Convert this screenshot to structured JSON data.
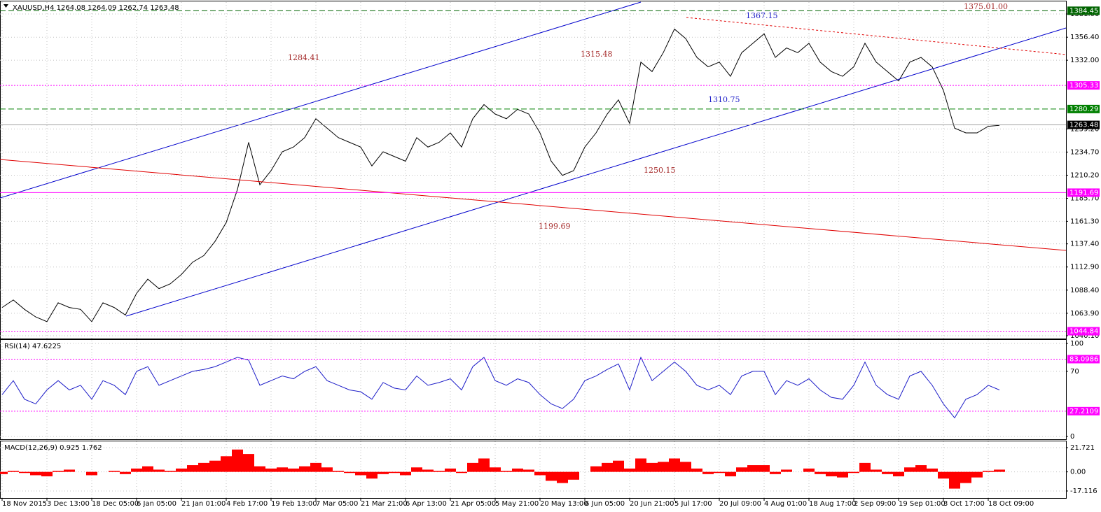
{
  "chart_data": [
    {
      "type": "line",
      "title": "XAUUSD,H4  1264.08 1264.09 1262.74 1263.48",
      "color": "#000000",
      "grid": true,
      "categories": [
        "18 Nov 2015",
        null,
        null,
        null,
        "3 Dec 13:00",
        null,
        null,
        null,
        "18 Dec 05:00",
        null,
        null,
        null,
        "6 Jan 05:00",
        null,
        null,
        null,
        "21 Jan 01:00",
        null,
        null,
        null,
        "4 Feb 17:00",
        null,
        null,
        null,
        "19 Feb 13:00",
        null,
        null,
        null,
        "7 Mar 05:00",
        null,
        null,
        null,
        "21 Mar 21:00",
        null,
        null,
        null,
        "6 Apr 13:00",
        null,
        null,
        null,
        "21 Apr 05:00",
        null,
        null,
        null,
        "5 May 21:00",
        null,
        null,
        null,
        "20 May 13:00",
        null,
        null,
        null,
        "6 Jun 05:00",
        null,
        null,
        null,
        "20 Jun 21:00",
        null,
        null,
        null,
        "5 Jul 17:00",
        null,
        null,
        null,
        "20 Jul 09:00",
        null,
        null,
        null,
        "4 Aug 01:00",
        null,
        null,
        null,
        "18 Aug 17:00",
        null,
        null,
        null,
        "2 Sep 09:00",
        null,
        null,
        null,
        "19 Sep 01:00",
        null,
        null,
        null,
        "3 Oct 17:00",
        null,
        null,
        null,
        "18 Oct 09:00",
        null
      ],
      "values": [
        1070,
        1078,
        1068,
        1060,
        1055,
        1075,
        1070,
        1068,
        1055,
        1075,
        1070,
        1062,
        1085,
        1100,
        1090,
        1095,
        1105,
        1118,
        1125,
        1140,
        1160,
        1195,
        1245,
        1200,
        1215,
        1235,
        1240,
        1250,
        1270,
        1260,
        1250,
        1245,
        1240,
        1220,
        1235,
        1230,
        1225,
        1250,
        1240,
        1245,
        1255,
        1240,
        1270,
        1285,
        1275,
        1270,
        1280,
        1275,
        1255,
        1225,
        1210,
        1215,
        1240,
        1255,
        1275,
        1290,
        1265,
        1330,
        1320,
        1340,
        1365,
        1355,
        1335,
        1325,
        1330,
        1315,
        1340,
        1350,
        1360,
        1335,
        1345,
        1340,
        1350,
        1330,
        1320,
        1315,
        1325,
        1350,
        1330,
        1320,
        1310,
        1330,
        1335,
        1325,
        1300,
        1260,
        1255,
        1255,
        1262,
        1263
      ],
      "ylim": [
        1037.1,
        1393.6
      ],
      "yticks": [
        {
          "value": 1381,
          "label": "1381.00"
        },
        {
          "value": 1356.4,
          "label": "1356.40"
        },
        {
          "value": 1332,
          "label": "1332.00"
        },
        {
          "value": 1259.2,
          "label": "1259.20"
        },
        {
          "value": 1234.7,
          "label": "1234.70"
        },
        {
          "value": 1210.2,
          "label": "1210.20"
        },
        {
          "value": 1185.7,
          "label": "1185.70"
        },
        {
          "value": 1161.3,
          "label": "1161.30"
        },
        {
          "value": 1137.4,
          "label": "1137.40"
        },
        {
          "value": 1112.9,
          "label": "1112.90"
        },
        {
          "value": 1088.4,
          "label": "1088.40"
        },
        {
          "value": 1063.9,
          "label": "1063.90"
        },
        {
          "value": 1040.1,
          "label": "1040.10"
        }
      ],
      "levels": [
        {
          "value": 1384.45,
          "color": "#006400",
          "style": "dashed"
        },
        {
          "value": 1305.33,
          "color": "#ff00ff",
          "style": "dotted"
        },
        {
          "value": 1280.29,
          "color": "#008000",
          "style": "dashed"
        },
        {
          "value": 1263.48,
          "color": "#000000",
          "style": "current"
        },
        {
          "value": 1191.69,
          "color": "#ff00ff",
          "style": "solid"
        },
        {
          "value": 1044.84,
          "color": "#ff00ff",
          "style": "dotted"
        }
      ],
      "annotations": [
        "1375.01.00",
        "1367.15",
        "1284.41",
        "1315.48",
        "1310.75",
        "1250.15",
        "1199.69"
      ]
    },
    {
      "type": "line",
      "title": "RSI(14) 47.6225",
      "color": "#1c1cc8",
      "grid": true,
      "values": [
        45,
        60,
        40,
        35,
        50,
        60,
        50,
        55,
        40,
        60,
        55,
        45,
        70,
        75,
        55,
        60,
        65,
        70,
        72,
        75,
        80,
        85,
        82,
        55,
        60,
        65,
        62,
        70,
        75,
        60,
        55,
        50,
        48,
        40,
        58,
        52,
        50,
        65,
        55,
        58,
        62,
        50,
        75,
        85,
        60,
        55,
        62,
        58,
        45,
        35,
        30,
        40,
        60,
        65,
        72,
        78,
        50,
        85,
        60,
        70,
        80,
        70,
        55,
        50,
        55,
        45,
        65,
        70,
        70,
        45,
        60,
        55,
        62,
        50,
        42,
        40,
        55,
        80,
        55,
        45,
        40,
        65,
        70,
        55,
        35,
        20,
        40,
        45,
        55,
        50
      ],
      "ylim": [
        -3,
        103
      ],
      "yticks": [
        100,
        70,
        0
      ],
      "levels": [
        {
          "value": 83.0986,
          "color": "#ff00ff",
          "style": "dotted"
        },
        {
          "value": 27.2109,
          "color": "#ff00ff",
          "style": "dotted"
        }
      ]
    },
    {
      "type": "bar",
      "title": "MACD(12,26,9) 0.925 1.762",
      "color": "#ff0000",
      "grid": true,
      "values": [
        -2,
        1,
        -1,
        -3,
        -4,
        1,
        2,
        0,
        -3,
        0,
        1,
        -2,
        3,
        5,
        2,
        1,
        3,
        6,
        8,
        10,
        14,
        20,
        16,
        5,
        3,
        4,
        3,
        5,
        8,
        4,
        1,
        -1,
        -3,
        -6,
        -2,
        -1,
        -3,
        4,
        2,
        1,
        3,
        -1,
        8,
        12,
        4,
        1,
        3,
        2,
        -3,
        -8,
        -10,
        -7,
        0,
        5,
        8,
        10,
        3,
        12,
        8,
        9,
        12,
        9,
        3,
        -2,
        -1,
        -4,
        4,
        6,
        6,
        -2,
        2,
        0,
        3,
        -2,
        -4,
        -5,
        -1,
        8,
        2,
        -2,
        -4,
        4,
        6,
        3,
        -6,
        -15,
        -10,
        -5,
        1,
        2
      ],
      "ylim": [
        -23.4,
        26.7
      ],
      "yticks": [
        21.721,
        {
          "value": 0,
          "label": "0.00"
        },
        -17.116
      ]
    }
  ]
}
